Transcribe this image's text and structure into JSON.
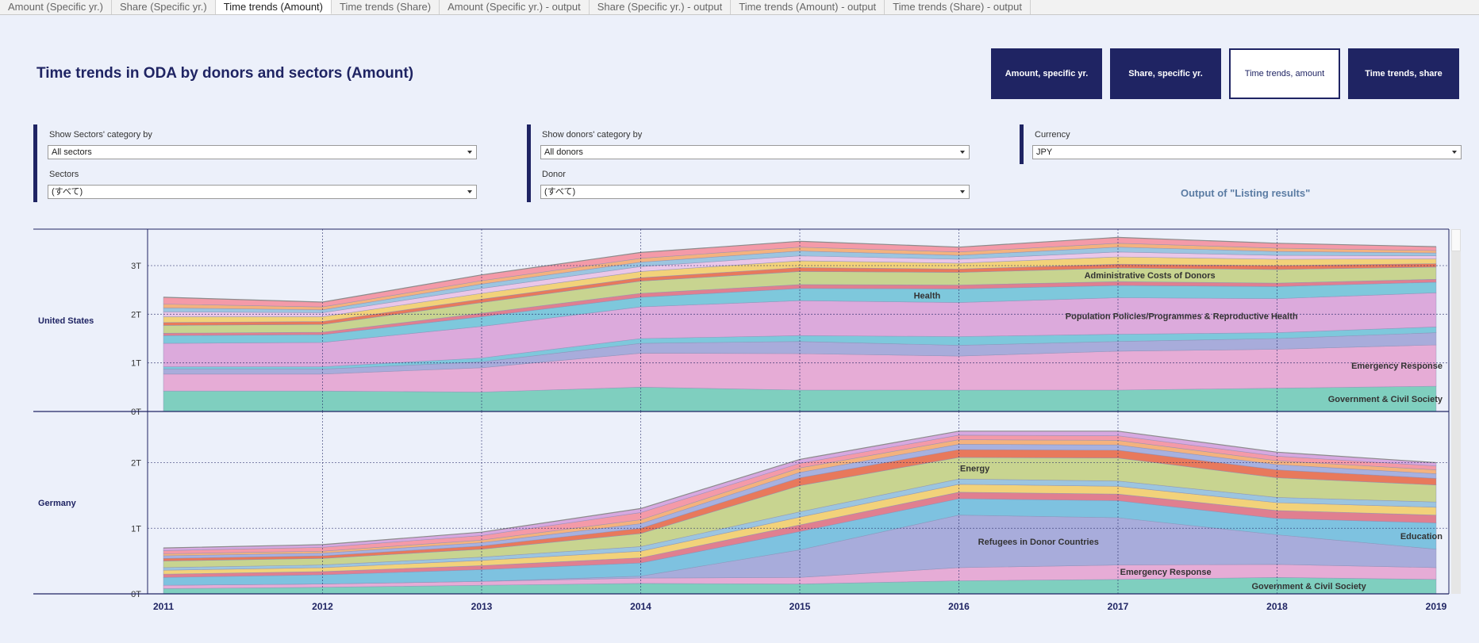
{
  "tabs": [
    {
      "label": "Amount (Specific yr.)",
      "active": false
    },
    {
      "label": "Share (Specific yr.)",
      "active": false
    },
    {
      "label": "Time trends (Amount)",
      "active": true
    },
    {
      "label": "Time trends (Share)",
      "active": false
    },
    {
      "label": "Amount (Specific yr.) - output",
      "active": false
    },
    {
      "label": "Share (Specific yr.) - output",
      "active": false
    },
    {
      "label": "Time trends (Amount) - output",
      "active": false
    },
    {
      "label": "Time trends (Share) - output",
      "active": false
    }
  ],
  "page_title": "Time trends in ODA by donors and sectors (Amount)",
  "nav_buttons": [
    {
      "label": "Amount, specific yr.",
      "active": false
    },
    {
      "label": "Share, specific yr.",
      "active": false
    },
    {
      "label": "Time trends, amount",
      "active": true
    },
    {
      "label": "Time trends, share",
      "active": false
    }
  ],
  "filters": {
    "sector_category": {
      "label": "Show Sectors' category by",
      "value": "All sectors"
    },
    "sectors": {
      "label": "Sectors",
      "value": "(すべて)"
    },
    "donor_category": {
      "label": "Show donors' category by",
      "value": "All donors"
    },
    "donor": {
      "label": "Donor",
      "value": "(すべて)"
    },
    "currency": {
      "label": "Currency",
      "value": "JPY"
    }
  },
  "output_label": "Output of \"Listing results\"",
  "colors": {
    "navy": "#1f2463",
    "background": "#ecf0fa",
    "government": "#7fcfbf",
    "emergency": "#e6acd6",
    "refugees": "#a8acdb",
    "population": "#dcaadc",
    "health": "#7ec8dc",
    "education": "#7ec2e0",
    "admin": "#c8d490",
    "energy": "#c8d490"
  },
  "chart_data": [
    {
      "type": "area",
      "stacked": true,
      "panel": "United States",
      "x": [
        2011,
        2012,
        2013,
        2014,
        2015,
        2016,
        2017,
        2018,
        2019
      ],
      "yticks": [
        0,
        1,
        2,
        3
      ],
      "ytick_labels": [
        "0T",
        "1T",
        "2T",
        "3T"
      ],
      "ylim": [
        0,
        3.75
      ],
      "unit": "T",
      "grid": {
        "x": "dotted",
        "y": "dotted"
      },
      "series": [
        {
          "name": "Government & Civil Society",
          "color": "#7fcfbf",
          "values": [
            0.42,
            0.42,
            0.4,
            0.5,
            0.44,
            0.44,
            0.44,
            0.48,
            0.52
          ],
          "label_year": 2019,
          "label_align": "end"
        },
        {
          "name": "Emergency Response",
          "color": "#e6acd6",
          "values": [
            0.35,
            0.35,
            0.5,
            0.7,
            0.75,
            0.7,
            0.8,
            0.8,
            0.85
          ],
          "label_year": 2019,
          "label_align": "end"
        },
        {
          "name": "",
          "color": "#a8acdb",
          "values": [
            0.1,
            0.1,
            0.12,
            0.2,
            0.25,
            0.22,
            0.2,
            0.22,
            0.25
          ]
        },
        {
          "name": "",
          "color": "#7ec8dc",
          "values": [
            0.05,
            0.05,
            0.08,
            0.1,
            0.12,
            0.18,
            0.15,
            0.12,
            0.12
          ]
        },
        {
          "name": "Population Policies/Programmes & Reproductive Health",
          "color": "#dcaadc",
          "values": [
            0.48,
            0.5,
            0.65,
            0.65,
            0.72,
            0.7,
            0.75,
            0.7,
            0.7
          ],
          "label_year": 2017.4,
          "label_align": "middle"
        },
        {
          "name": "Health",
          "color": "#7ec8dc",
          "values": [
            0.16,
            0.16,
            0.2,
            0.2,
            0.25,
            0.28,
            0.25,
            0.25,
            0.22
          ],
          "label_year": 2015.8,
          "label_align": "middle"
        },
        {
          "name": "",
          "color": "#e07f90",
          "values": [
            0.05,
            0.05,
            0.07,
            0.08,
            0.08,
            0.08,
            0.08,
            0.07,
            0.06
          ]
        },
        {
          "name": "Administrative Costs of Donors",
          "color": "#c8d490",
          "values": [
            0.16,
            0.16,
            0.22,
            0.25,
            0.27,
            0.26,
            0.28,
            0.28,
            0.25
          ],
          "label_year": 2017.2,
          "label_align": "middle"
        },
        {
          "name": "",
          "color": "#e8795c",
          "values": [
            0.06,
            0.06,
            0.07,
            0.07,
            0.08,
            0.07,
            0.08,
            0.08,
            0.07
          ]
        },
        {
          "name": "",
          "color": "#f2d27a",
          "values": [
            0.12,
            0.1,
            0.12,
            0.13,
            0.14,
            0.12,
            0.15,
            0.13,
            0.1
          ]
        },
        {
          "name": "",
          "color": "#eac7e8",
          "values": [
            0.1,
            0.08,
            0.1,
            0.1,
            0.1,
            0.08,
            0.1,
            0.08,
            0.06
          ]
        },
        {
          "name": "",
          "color": "#9cc5e0",
          "values": [
            0.08,
            0.06,
            0.09,
            0.09,
            0.1,
            0.08,
            0.1,
            0.08,
            0.06
          ]
        },
        {
          "name": "",
          "color": "#f4b27e",
          "values": [
            0.08,
            0.06,
            0.07,
            0.08,
            0.08,
            0.07,
            0.08,
            0.07,
            0.05
          ]
        },
        {
          "name": "",
          "color": "#f49aa8",
          "values": [
            0.14,
            0.1,
            0.12,
            0.12,
            0.12,
            0.1,
            0.12,
            0.1,
            0.08
          ]
        }
      ]
    },
    {
      "type": "area",
      "stacked": true,
      "panel": "Germany",
      "x": [
        2011,
        2012,
        2013,
        2014,
        2015,
        2016,
        2017,
        2018,
        2019
      ],
      "yticks": [
        0,
        1,
        2
      ],
      "ytick_labels": [
        "0T",
        "1T",
        "2T"
      ],
      "ylim": [
        0,
        2.78
      ],
      "unit": "T",
      "grid": {
        "x": "dotted",
        "y": "dotted"
      },
      "series": [
        {
          "name": "Government & Civil Society",
          "color": "#7fcfbf",
          "values": [
            0.08,
            0.1,
            0.13,
            0.16,
            0.15,
            0.2,
            0.22,
            0.25,
            0.22
          ],
          "label_year": 2018.2,
          "label_align": "middle"
        },
        {
          "name": "Emergency Response",
          "color": "#e6acd6",
          "values": [
            0.05,
            0.05,
            0.06,
            0.08,
            0.1,
            0.2,
            0.22,
            0.2,
            0.18
          ],
          "label_year": 2017.3,
          "label_align": "middle"
        },
        {
          "name": "Refugees in Donor Countries",
          "color": "#a8acdb",
          "values": [
            0.0,
            0.0,
            0.0,
            0.03,
            0.42,
            0.8,
            0.72,
            0.45,
            0.28
          ],
          "label_year": 2016.5,
          "label_align": "middle"
        },
        {
          "name": "Education",
          "color": "#7ec2e0",
          "values": [
            0.12,
            0.14,
            0.18,
            0.2,
            0.28,
            0.25,
            0.26,
            0.25,
            0.4
          ],
          "label_year": 2019,
          "label_align": "end"
        },
        {
          "name": "",
          "color": "#e07f90",
          "values": [
            0.05,
            0.05,
            0.06,
            0.08,
            0.1,
            0.1,
            0.1,
            0.12,
            0.12
          ]
        },
        {
          "name": "",
          "color": "#f2d27a",
          "values": [
            0.06,
            0.06,
            0.08,
            0.1,
            0.12,
            0.12,
            0.12,
            0.12,
            0.12
          ]
        },
        {
          "name": "",
          "color": "#9cc5e0",
          "values": [
            0.04,
            0.04,
            0.05,
            0.07,
            0.08,
            0.08,
            0.08,
            0.08,
            0.08
          ]
        },
        {
          "name": "Energy",
          "color": "#c8d490",
          "values": [
            0.1,
            0.1,
            0.12,
            0.2,
            0.4,
            0.33,
            0.35,
            0.3,
            0.26
          ],
          "label_year": 2016.1,
          "label_align": "middle"
        },
        {
          "name": "",
          "color": "#e8795c",
          "values": [
            0.04,
            0.04,
            0.05,
            0.08,
            0.12,
            0.12,
            0.12,
            0.12,
            0.1
          ]
        },
        {
          "name": "",
          "color": "#a7b1e0",
          "values": [
            0.04,
            0.04,
            0.05,
            0.07,
            0.08,
            0.08,
            0.08,
            0.08,
            0.07
          ]
        },
        {
          "name": "",
          "color": "#f4b27e",
          "values": [
            0.03,
            0.03,
            0.04,
            0.06,
            0.07,
            0.07,
            0.07,
            0.06,
            0.06
          ]
        },
        {
          "name": "",
          "color": "#f49aa8",
          "values": [
            0.05,
            0.06,
            0.07,
            0.11,
            0.07,
            0.07,
            0.07,
            0.07,
            0.06
          ]
        },
        {
          "name": "",
          "color": "#d7a8e0",
          "values": [
            0.04,
            0.04,
            0.05,
            0.06,
            0.06,
            0.06,
            0.07,
            0.06,
            0.05
          ]
        }
      ]
    }
  ]
}
